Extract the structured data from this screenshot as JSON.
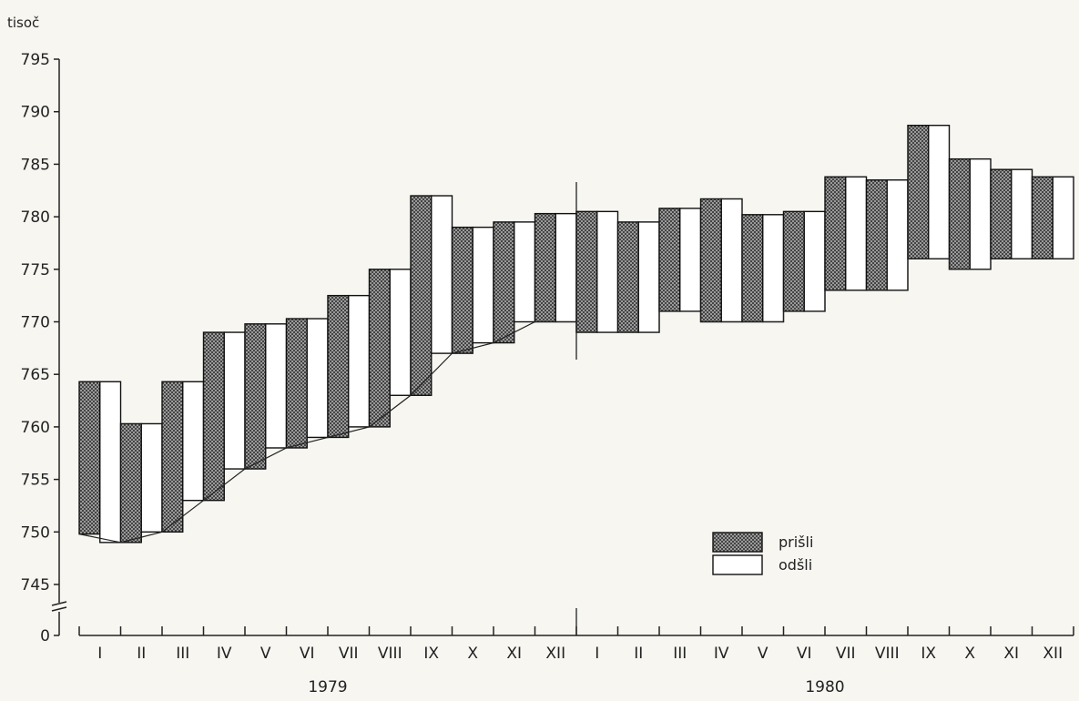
{
  "chart_data": {
    "type": "bar",
    "ylabel": "tisoč",
    "yticks": [
      795,
      790,
      785,
      780,
      775,
      770,
      765,
      760,
      755,
      750,
      745,
      0
    ],
    "ylim": [
      745,
      795
    ],
    "axis_break": true,
    "years": [
      {
        "label": "1979",
        "categories": [
          "I",
          "II",
          "III",
          "IV",
          "V",
          "VI",
          "VII",
          "VIII",
          "IX",
          "X",
          "XI",
          "XII"
        ]
      },
      {
        "label": "1980",
        "categories": [
          "I",
          "II",
          "III",
          "IV",
          "V",
          "VI",
          "VII",
          "VIII",
          "IX",
          "X",
          "XI",
          "XII"
        ]
      }
    ],
    "series": [
      {
        "name": "prišli",
        "pattern": "crosshatch",
        "base": [
          749.8,
          749.0,
          750.0,
          753.0,
          756.0,
          758.0,
          759.0,
          760.0,
          763.0,
          767.0,
          768.0,
          770.0,
          769.0,
          769.0,
          771.0,
          770.0,
          770.0,
          771.0,
          773.0,
          773.0,
          776.0,
          775.0,
          776.0,
          776.0
        ],
        "top": [
          764.3,
          760.3,
          764.3,
          769.0,
          769.8,
          770.3,
          772.5,
          775.0,
          782.0,
          779.0,
          779.5,
          780.3,
          780.5,
          779.5,
          780.8,
          781.7,
          780.2,
          780.5,
          783.8,
          783.5,
          788.7,
          785.5,
          784.5,
          783.8
        ]
      },
      {
        "name": "odšli",
        "pattern": "white",
        "base": [
          749.0,
          750.0,
          753.0,
          756.0,
          758.0,
          759.0,
          760.0,
          763.0,
          767.0,
          768.0,
          770.0,
          770.0,
          769.0,
          769.0,
          771.0,
          770.0,
          770.0,
          771.0,
          773.0,
          773.0,
          776.0,
          775.0,
          776.0,
          776.0
        ],
        "top": [
          764.3,
          760.3,
          764.3,
          769.0,
          769.8,
          770.3,
          772.5,
          775.0,
          782.0,
          779.0,
          779.5,
          780.3,
          780.5,
          779.5,
          780.8,
          781.7,
          780.2,
          780.5,
          783.8,
          783.5,
          788.7,
          785.5,
          784.5,
          783.8
        ]
      }
    ],
    "legend_position": "bottom-right",
    "grid": false
  }
}
